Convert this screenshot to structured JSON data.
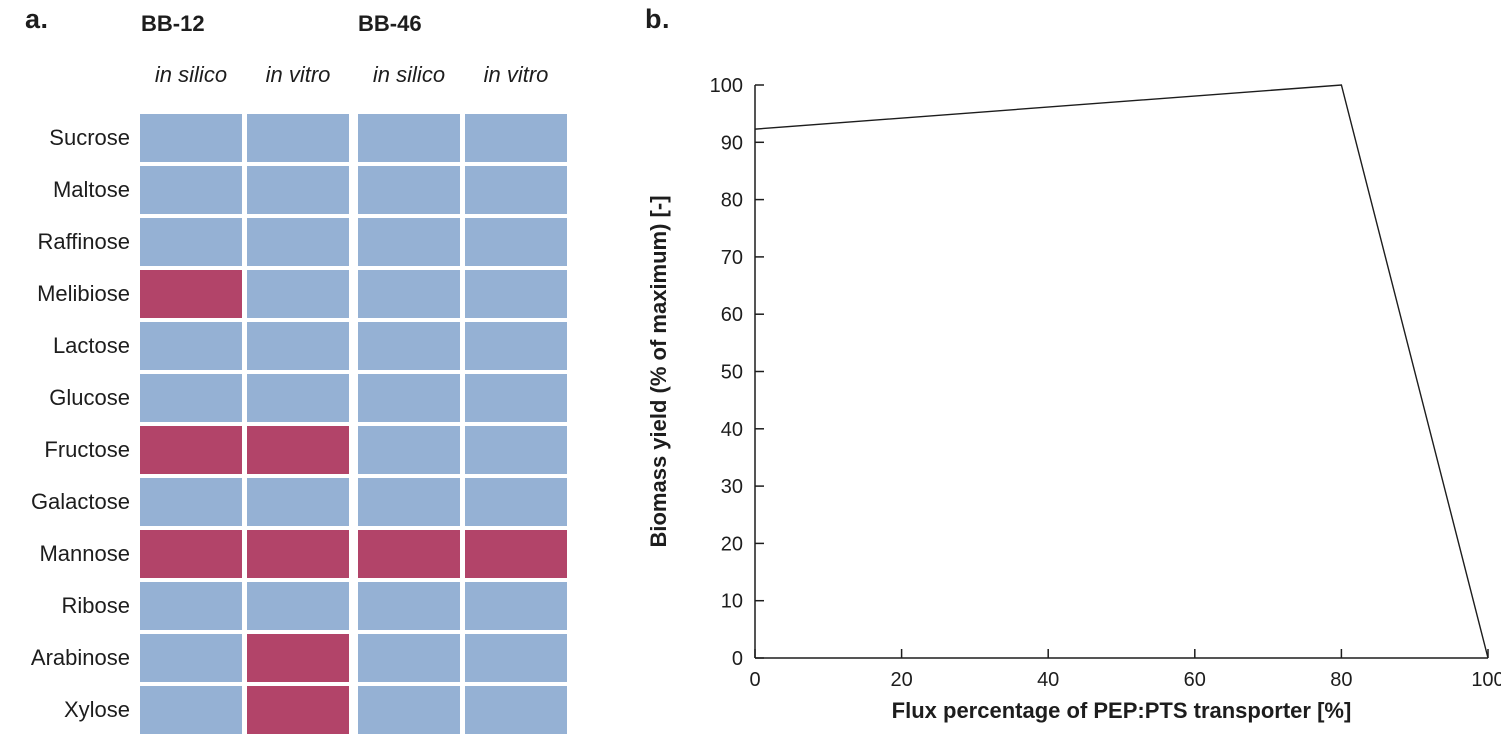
{
  "panel_a": {
    "label": "a."
  },
  "panel_b": {
    "label": "b."
  },
  "palette": {
    "growth_blue": "#95b1d4",
    "no_growth_red": "#b24469",
    "line_black": "#1d1d1d"
  },
  "chart_data": [
    {
      "type": "heatmap",
      "panel": "a",
      "group_headers": [
        "BB-12",
        "BB-46"
      ],
      "column_labels": [
        "in silico",
        "in vitro",
        "in silico",
        "in vitro"
      ],
      "rows": [
        "Sucrose",
        "Maltose",
        "Raffinose",
        "Melibiose",
        "Lactose",
        "Glucose",
        "Fructose",
        "Galactose",
        "Mannose",
        "Ribose",
        "Arabinose",
        "Xylose"
      ],
      "values": [
        [
          0,
          0,
          0,
          0
        ],
        [
          0,
          0,
          0,
          0
        ],
        [
          0,
          0,
          0,
          0
        ],
        [
          1,
          0,
          0,
          0
        ],
        [
          0,
          0,
          0,
          0
        ],
        [
          0,
          0,
          0,
          0
        ],
        [
          1,
          1,
          0,
          0
        ],
        [
          0,
          0,
          0,
          0
        ],
        [
          1,
          1,
          1,
          1
        ],
        [
          0,
          0,
          0,
          0
        ],
        [
          0,
          1,
          0,
          0
        ],
        [
          0,
          1,
          0,
          0
        ]
      ],
      "colors": {
        "0": "#95b1d4",
        "1": "#b24469"
      },
      "legend": "0 = blue cell, 1 = red cell"
    },
    {
      "type": "line",
      "panel": "b",
      "title": "",
      "xlabel": "Flux percentage of PEP:PTS transporter [%]",
      "ylabel": "Biomass yield (% of maximum) [-]",
      "xlim": [
        0,
        100
      ],
      "ylim": [
        0,
        100
      ],
      "xticks": [
        0,
        20,
        40,
        60,
        80,
        100
      ],
      "yticks": [
        0,
        10,
        20,
        30,
        40,
        50,
        60,
        70,
        80,
        90,
        100
      ],
      "grid": false,
      "legend_position": "none",
      "series": [
        {
          "name": "Biomass yield",
          "points": [
            [
              0,
              92.3
            ],
            [
              80,
              100
            ],
            [
              100,
              0
            ]
          ],
          "color": "#1d1d1d"
        }
      ]
    }
  ]
}
